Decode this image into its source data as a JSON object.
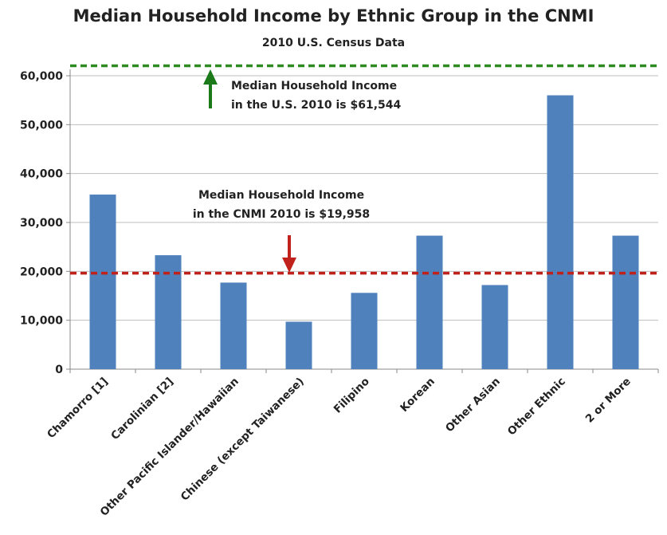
{
  "chart_data": {
    "type": "bar",
    "title": "Median Household Income by Ethnic Group in the CNMI",
    "subtitle": "2010 U.S. Census Data",
    "categories": [
      "Chamorro [1]",
      "Carolinian [2]",
      "Other Pacific Islander/Hawaiian",
      "Chinese (except Taiwanese)",
      "Filipino",
      "Korean",
      "Other Asian",
      "Other Ethnic",
      "2 or More"
    ],
    "values": [
      35700,
      23300,
      17700,
      9700,
      15600,
      27300,
      17200,
      56000,
      27300
    ],
    "ylim": [
      0,
      60000
    ],
    "yticks": [
      "0",
      "10,000",
      "20,000",
      "30,000",
      "40,000",
      "50,000",
      "60,000"
    ],
    "ytick_values": [
      0,
      10000,
      20000,
      30000,
      40000,
      50000,
      60000
    ],
    "grid": true,
    "bar_color": "#4f81bd",
    "reference_lines": [
      {
        "name": "us",
        "value": 61544,
        "color": "#2e8b22",
        "arrow_color": "#1a7a1a",
        "label_lines": [
          "Median Household Income",
          "in the U.S. 2010 is $61,544"
        ]
      },
      {
        "name": "cnmi",
        "value": 19958,
        "color": "#c0221b",
        "arrow_color": "#c0221b",
        "label_lines": [
          "Median Household Income",
          "in the CNMI 2010 is $19,958"
        ]
      }
    ]
  }
}
